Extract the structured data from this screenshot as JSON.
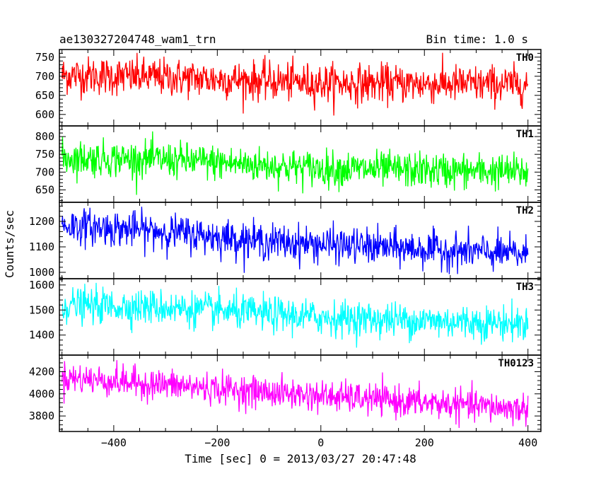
{
  "header": {
    "left_title": "ae130327204748_wam1_trn",
    "right_title": "Bin time: 1.0 s"
  },
  "axes": {
    "xlabel": "Time [sec] 0 = 2013/03/27 20:47:48",
    "ylabel": "Counts/sec"
  },
  "chart_data": {
    "type": "line",
    "title": "ae130327204748_wam1_trn",
    "bin_time": "Bin time: 1.0 s",
    "xlabel": "Time [sec] 0 = 2013/03/27 20:47:48",
    "ylabel": "Counts/sec",
    "xlim": [
      -505,
      425
    ],
    "x_range_data": [
      -500,
      400
    ],
    "x_ticks": [
      -400,
      -200,
      0,
      200,
      400
    ],
    "grid": false,
    "panels": [
      {
        "name": "TH0",
        "color": "#ff0000",
        "ylim": [
          570,
          770
        ],
        "yticks": [
          600,
          650,
          700,
          750
        ],
        "trend": [
          [
            -500,
            703
          ],
          [
            -300,
            697
          ],
          [
            0,
            682
          ],
          [
            400,
            678
          ]
        ],
        "noise_sd": 25
      },
      {
        "name": "TH1",
        "color": "#00ff00",
        "ylim": [
          615,
          830
        ],
        "yticks": [
          650,
          700,
          750,
          800
        ],
        "trend": [
          [
            -500,
            740
          ],
          [
            -300,
            735
          ],
          [
            0,
            710
          ],
          [
            400,
            700
          ]
        ],
        "noise_sd": 25
      },
      {
        "name": "TH2",
        "color": "#0000ff",
        "ylim": [
          975,
          1275
        ],
        "yticks": [
          1000,
          1100,
          1200
        ],
        "trend": [
          [
            -500,
            1185
          ],
          [
            -300,
            1160
          ],
          [
            -100,
            1120
          ],
          [
            200,
            1090
          ],
          [
            400,
            1070
          ]
        ],
        "noise_sd": 35
      },
      {
        "name": "TH3",
        "color": "#00ffff",
        "ylim": [
          1320,
          1625
        ],
        "yticks": [
          1400,
          1500,
          1600
        ],
        "trend": [
          [
            -500,
            1520
          ],
          [
            -300,
            1510
          ],
          [
            0,
            1470
          ],
          [
            400,
            1445
          ]
        ],
        "noise_sd": 35
      },
      {
        "name": "TH0123",
        "color": "#ff00ff",
        "ylim": [
          3660,
          4350
        ],
        "yticks": [
          3800,
          4000,
          4200
        ],
        "trend": [
          [
            -500,
            4150
          ],
          [
            -300,
            4080
          ],
          [
            0,
            3980
          ],
          [
            400,
            3860
          ]
        ],
        "noise_sd": 70
      }
    ]
  }
}
